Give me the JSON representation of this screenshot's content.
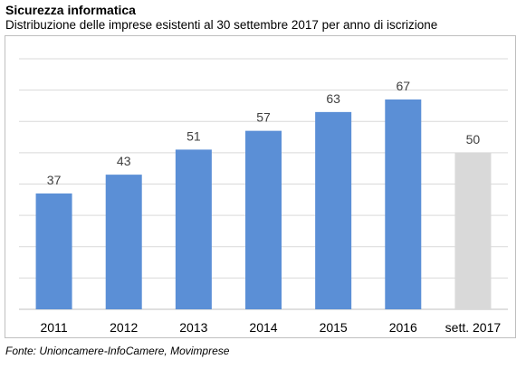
{
  "header": {
    "title": "Sicurezza informatica",
    "subtitle": "Distribuzione delle imprese esistenti al 30 settembre 2017 per anno di iscrizione"
  },
  "footer": {
    "source": "Fonte: Unioncamere-InfoCamere, Movimprese"
  },
  "colors": {
    "bar": "#5b8fd6",
    "bar_highlight": "#d9d9d9",
    "grid": "#d9d9d9",
    "axis": "#bfbfbf"
  },
  "chart_data": {
    "type": "bar",
    "categories": [
      "2011",
      "2012",
      "2013",
      "2014",
      "2015",
      "2016",
      "sett. 2017"
    ],
    "values": [
      37,
      43,
      51,
      57,
      63,
      67,
      50
    ],
    "highlight_index": 6,
    "title": "",
    "xlabel": "",
    "ylabel": "",
    "ylim": [
      0,
      80
    ],
    "grid": true,
    "legend": "none"
  }
}
